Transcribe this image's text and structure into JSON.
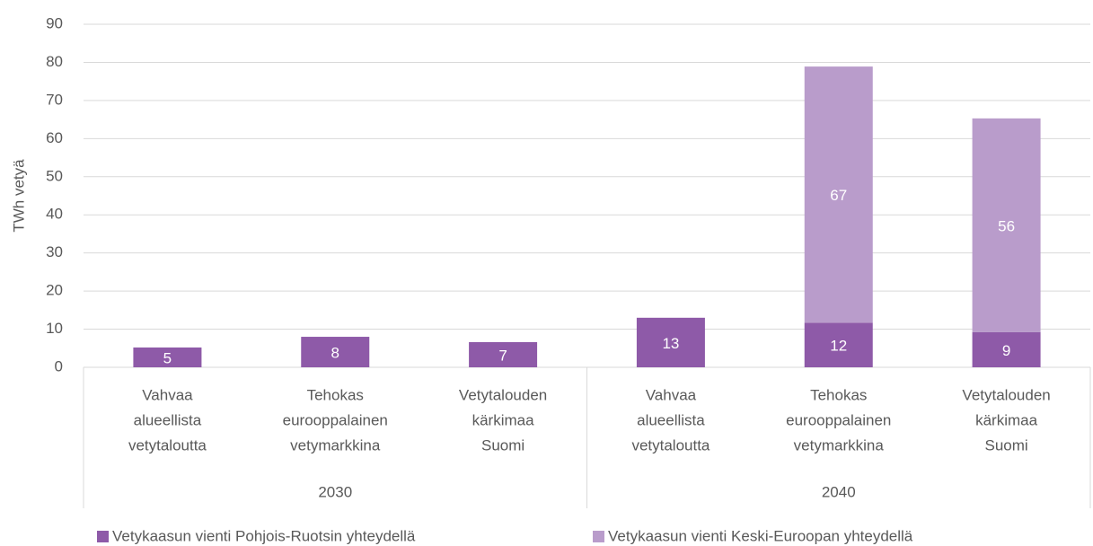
{
  "chart_data": {
    "type": "stacked_bar",
    "y_label": "TWh vetyä",
    "categories": [
      [
        "Vahvaa",
        "alueellista",
        "vetytaloutta"
      ],
      [
        "Tehokas",
        "eurooppalainen",
        "vetymarkkina"
      ],
      [
        "Vetytalouden",
        "kärkimaa",
        "Suomi"
      ],
      [
        "Vahvaa",
        "alueellista",
        "vetytaloutta"
      ],
      [
        "Tehokas",
        "eurooppalainen",
        "vetymarkkina"
      ],
      [
        "Vetytalouden",
        "kärkimaa",
        "Suomi"
      ]
    ],
    "groups": [
      "2030",
      "2040"
    ],
    "series": [
      {
        "name": "Vetykaasun vienti Pohjois-Ruotsin yhteydellä",
        "color": "#8e5aa8",
        "values": [
          5.2,
          8.0,
          6.6,
          13.0,
          11.7,
          9.2
        ],
        "value_labels": [
          "5",
          "8",
          "7",
          "13",
          "12",
          "9"
        ]
      },
      {
        "name": "Vetykaasun vienti Keski-Euroopan yhteydellä",
        "color": "#b99ccb",
        "values": [
          null,
          null,
          null,
          null,
          67.2,
          56.1
        ],
        "value_labels": [
          null,
          null,
          null,
          null,
          "67",
          "56"
        ]
      }
    ],
    "ylim": [
      0,
      90
    ],
    "yticks": [
      0,
      10,
      20,
      30,
      40,
      50,
      60,
      70,
      80,
      90
    ],
    "grid": true,
    "legend": "bottom"
  }
}
